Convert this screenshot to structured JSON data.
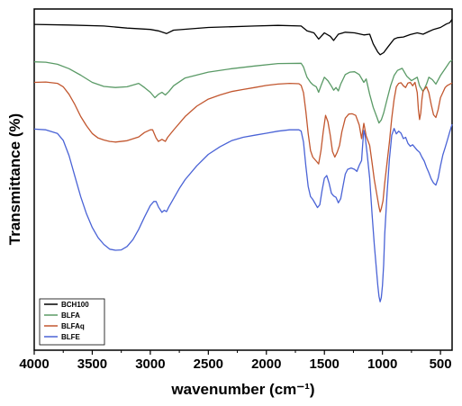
{
  "chart_data": {
    "type": "line",
    "title": "",
    "xlabel": "wavenumber (cm⁻¹)",
    "ylabel": "Transmittance (%)",
    "xlim": [
      4000,
      400
    ],
    "x_reversed": true,
    "x_ticks": [
      4000,
      3500,
      3000,
      2500,
      2000,
      1500,
      1000,
      500
    ],
    "y_ticks_shown": false,
    "ylim": [
      0,
      100
    ],
    "grid": false,
    "legend_position": "bottom-left",
    "series": [
      {
        "name": "BCH100",
        "color": "#000000",
        "points": [
          [
            4000,
            95.5
          ],
          [
            3700,
            95.3
          ],
          [
            3400,
            95.0
          ],
          [
            3200,
            94.4
          ],
          [
            3000,
            94.0
          ],
          [
            2930,
            93.6
          ],
          [
            2860,
            92.8
          ],
          [
            2800,
            93.8
          ],
          [
            2500,
            94.6
          ],
          [
            2100,
            95.0
          ],
          [
            1900,
            95.2
          ],
          [
            1700,
            95.0
          ],
          [
            1650,
            93.6
          ],
          [
            1590,
            93.0
          ],
          [
            1550,
            91.2
          ],
          [
            1500,
            93.0
          ],
          [
            1450,
            92.0
          ],
          [
            1420,
            90.8
          ],
          [
            1380,
            92.6
          ],
          [
            1320,
            93.2
          ],
          [
            1240,
            93.0
          ],
          [
            1160,
            92.4
          ],
          [
            1110,
            92.6
          ],
          [
            1080,
            89.8
          ],
          [
            1040,
            87.4
          ],
          [
            1020,
            86.6
          ],
          [
            990,
            87.2
          ],
          [
            950,
            89.0
          ],
          [
            900,
            91.2
          ],
          [
            870,
            91.6
          ],
          [
            820,
            91.8
          ],
          [
            760,
            92.5
          ],
          [
            700,
            93.0
          ],
          [
            650,
            92.6
          ],
          [
            600,
            93.4
          ],
          [
            560,
            94.0
          ],
          [
            500,
            94.6
          ],
          [
            450,
            95.6
          ],
          [
            420,
            96.0
          ],
          [
            400,
            97.0
          ]
        ]
      },
      {
        "name": "BLFA",
        "color": "#5a9a66",
        "points": [
          [
            4000,
            84.5
          ],
          [
            3900,
            84.4
          ],
          [
            3800,
            83.8
          ],
          [
            3700,
            82.5
          ],
          [
            3600,
            80.6
          ],
          [
            3500,
            78.5
          ],
          [
            3400,
            77.3
          ],
          [
            3300,
            77.0
          ],
          [
            3200,
            77.2
          ],
          [
            3100,
            78.2
          ],
          [
            3050,
            77.0
          ],
          [
            3000,
            75.6
          ],
          [
            2960,
            74.0
          ],
          [
            2930,
            75.0
          ],
          [
            2900,
            75.6
          ],
          [
            2870,
            74.8
          ],
          [
            2840,
            75.8
          ],
          [
            2800,
            77.5
          ],
          [
            2700,
            79.8
          ],
          [
            2500,
            81.5
          ],
          [
            2300,
            82.5
          ],
          [
            2100,
            83.3
          ],
          [
            1900,
            84.0
          ],
          [
            1700,
            84.1
          ],
          [
            1680,
            83.0
          ],
          [
            1650,
            80.0
          ],
          [
            1620,
            78.5
          ],
          [
            1600,
            77.8
          ],
          [
            1570,
            77.2
          ],
          [
            1550,
            75.6
          ],
          [
            1530,
            77.5
          ],
          [
            1500,
            80.0
          ],
          [
            1470,
            79.0
          ],
          [
            1440,
            77.4
          ],
          [
            1420,
            76.2
          ],
          [
            1400,
            77.0
          ],
          [
            1380,
            76.0
          ],
          [
            1360,
            78.0
          ],
          [
            1320,
            80.8
          ],
          [
            1280,
            81.5
          ],
          [
            1240,
            81.6
          ],
          [
            1200,
            80.8
          ],
          [
            1160,
            78.5
          ],
          [
            1140,
            79.5
          ],
          [
            1110,
            75.0
          ],
          [
            1080,
            71.2
          ],
          [
            1050,
            68.5
          ],
          [
            1030,
            66.6
          ],
          [
            1010,
            67.5
          ],
          [
            990,
            69.5
          ],
          [
            960,
            73.5
          ],
          [
            930,
            77.5
          ],
          [
            900,
            80.5
          ],
          [
            870,
            82.0
          ],
          [
            830,
            82.6
          ],
          [
            790,
            80.3
          ],
          [
            750,
            79.0
          ],
          [
            700,
            80.0
          ],
          [
            680,
            77.5
          ],
          [
            650,
            75.8
          ],
          [
            620,
            78.0
          ],
          [
            600,
            80.0
          ],
          [
            570,
            79.3
          ],
          [
            540,
            78.0
          ],
          [
            500,
            80.5
          ],
          [
            450,
            83.0
          ],
          [
            420,
            84.5
          ],
          [
            400,
            85.0
          ]
        ]
      },
      {
        "name": "BLFAq",
        "color": "#c2572f",
        "points": [
          [
            4000,
            78.5
          ],
          [
            3900,
            78.6
          ],
          [
            3800,
            78.2
          ],
          [
            3750,
            77.2
          ],
          [
            3700,
            75.0
          ],
          [
            3650,
            72.0
          ],
          [
            3600,
            68.5
          ],
          [
            3550,
            65.8
          ],
          [
            3500,
            63.5
          ],
          [
            3450,
            62.2
          ],
          [
            3400,
            61.6
          ],
          [
            3350,
            61.2
          ],
          [
            3300,
            61.0
          ],
          [
            3200,
            61.4
          ],
          [
            3100,
            62.5
          ],
          [
            3050,
            63.8
          ],
          [
            3000,
            64.6
          ],
          [
            2980,
            64.6
          ],
          [
            2950,
            62.2
          ],
          [
            2930,
            61.2
          ],
          [
            2900,
            61.8
          ],
          [
            2870,
            61.2
          ],
          [
            2850,
            62.4
          ],
          [
            2800,
            64.5
          ],
          [
            2700,
            68.5
          ],
          [
            2600,
            71.5
          ],
          [
            2500,
            73.6
          ],
          [
            2400,
            74.8
          ],
          [
            2300,
            75.8
          ],
          [
            2200,
            76.4
          ],
          [
            2100,
            77.0
          ],
          [
            2000,
            77.6
          ],
          [
            1900,
            78.0
          ],
          [
            1800,
            78.2
          ],
          [
            1720,
            78.1
          ],
          [
            1700,
            77.6
          ],
          [
            1680,
            75.5
          ],
          [
            1660,
            70.0
          ],
          [
            1640,
            63.5
          ],
          [
            1620,
            58.5
          ],
          [
            1600,
            56.6
          ],
          [
            1580,
            55.8
          ],
          [
            1560,
            55.0
          ],
          [
            1550,
            54.6
          ],
          [
            1530,
            58.5
          ],
          [
            1510,
            64.0
          ],
          [
            1490,
            68.8
          ],
          [
            1470,
            67.0
          ],
          [
            1450,
            63.0
          ],
          [
            1430,
            58.2
          ],
          [
            1410,
            56.6
          ],
          [
            1390,
            58.0
          ],
          [
            1370,
            60.0
          ],
          [
            1350,
            64.0
          ],
          [
            1320,
            68.0
          ],
          [
            1290,
            69.2
          ],
          [
            1260,
            69.3
          ],
          [
            1230,
            68.8
          ],
          [
            1200,
            66.0
          ],
          [
            1180,
            62.0
          ],
          [
            1160,
            66.5
          ],
          [
            1140,
            62.8
          ],
          [
            1110,
            60.0
          ],
          [
            1090,
            55.0
          ],
          [
            1070,
            50.0
          ],
          [
            1050,
            46.0
          ],
          [
            1030,
            42.0
          ],
          [
            1020,
            40.5
          ],
          [
            1010,
            41.5
          ],
          [
            995,
            43.8
          ],
          [
            980,
            49.0
          ],
          [
            960,
            55.0
          ],
          [
            940,
            61.0
          ],
          [
            920,
            68.0
          ],
          [
            900,
            73.5
          ],
          [
            880,
            77.2
          ],
          [
            860,
            78.2
          ],
          [
            840,
            78.4
          ],
          [
            820,
            77.5
          ],
          [
            800,
            77.0
          ],
          [
            780,
            78.3
          ],
          [
            760,
            78.5
          ],
          [
            740,
            77.5
          ],
          [
            720,
            78.5
          ],
          [
            700,
            75.5
          ],
          [
            690,
            70.5
          ],
          [
            680,
            67.6
          ],
          [
            670,
            69.5
          ],
          [
            660,
            73.5
          ],
          [
            650,
            76.0
          ],
          [
            620,
            77.2
          ],
          [
            600,
            75.5
          ],
          [
            580,
            72.0
          ],
          [
            560,
            69.0
          ],
          [
            540,
            68.2
          ],
          [
            520,
            70.5
          ],
          [
            500,
            74.0
          ],
          [
            480,
            75.5
          ],
          [
            460,
            77.0
          ],
          [
            440,
            77.6
          ],
          [
            400,
            78.3
          ]
        ]
      },
      {
        "name": "BLFE",
        "color": "#4a63d6",
        "points": [
          [
            4000,
            64.8
          ],
          [
            3900,
            64.6
          ],
          [
            3800,
            63.5
          ],
          [
            3750,
            61.5
          ],
          [
            3700,
            57.0
          ],
          [
            3650,
            51.0
          ],
          [
            3600,
            45.0
          ],
          [
            3550,
            40.0
          ],
          [
            3500,
            36.0
          ],
          [
            3450,
            33.0
          ],
          [
            3400,
            31.0
          ],
          [
            3350,
            29.6
          ],
          [
            3300,
            29.3
          ],
          [
            3250,
            29.4
          ],
          [
            3200,
            30.4
          ],
          [
            3150,
            32.4
          ],
          [
            3100,
            35.4
          ],
          [
            3050,
            39.0
          ],
          [
            3000,
            42.4
          ],
          [
            2970,
            43.6
          ],
          [
            2950,
            43.6
          ],
          [
            2930,
            42.0
          ],
          [
            2900,
            40.4
          ],
          [
            2880,
            41.0
          ],
          [
            2860,
            40.6
          ],
          [
            2840,
            42.0
          ],
          [
            2800,
            44.4
          ],
          [
            2750,
            47.4
          ],
          [
            2700,
            50.0
          ],
          [
            2600,
            54.0
          ],
          [
            2500,
            57.4
          ],
          [
            2400,
            59.6
          ],
          [
            2300,
            61.4
          ],
          [
            2200,
            62.4
          ],
          [
            2100,
            63.0
          ],
          [
            2000,
            63.6
          ],
          [
            1900,
            64.2
          ],
          [
            1800,
            64.6
          ],
          [
            1720,
            64.6
          ],
          [
            1700,
            64.2
          ],
          [
            1680,
            61.0
          ],
          [
            1660,
            54.0
          ],
          [
            1640,
            48.0
          ],
          [
            1620,
            45.0
          ],
          [
            1600,
            44.2
          ],
          [
            1580,
            43.0
          ],
          [
            1560,
            41.8
          ],
          [
            1540,
            42.6
          ],
          [
            1520,
            46.8
          ],
          [
            1500,
            50.4
          ],
          [
            1480,
            51.2
          ],
          [
            1460,
            49.0
          ],
          [
            1440,
            46.0
          ],
          [
            1420,
            45.2
          ],
          [
            1400,
            44.8
          ],
          [
            1380,
            43.2
          ],
          [
            1360,
            44.4
          ],
          [
            1340,
            48.0
          ],
          [
            1320,
            51.6
          ],
          [
            1300,
            53.0
          ],
          [
            1270,
            53.4
          ],
          [
            1240,
            53.0
          ],
          [
            1220,
            52.4
          ],
          [
            1200,
            54.2
          ],
          [
            1180,
            55.6
          ],
          [
            1170,
            60.6
          ],
          [
            1160,
            64.4
          ],
          [
            1150,
            63.0
          ],
          [
            1130,
            57.0
          ],
          [
            1110,
            50.4
          ],
          [
            1090,
            40.0
          ],
          [
            1070,
            31.0
          ],
          [
            1050,
            23.0
          ],
          [
            1040,
            19.0
          ],
          [
            1030,
            15.8
          ],
          [
            1020,
            14.2
          ],
          [
            1010,
            15.4
          ],
          [
            1000,
            19.0
          ],
          [
            990,
            25.0
          ],
          [
            980,
            34.0
          ],
          [
            960,
            46.0
          ],
          [
            940,
            56.0
          ],
          [
            920,
            63.0
          ],
          [
            900,
            65.0
          ],
          [
            880,
            63.4
          ],
          [
            860,
            64.2
          ],
          [
            840,
            63.6
          ],
          [
            820,
            62.0
          ],
          [
            800,
            62.4
          ],
          [
            780,
            60.6
          ],
          [
            760,
            59.8
          ],
          [
            740,
            60.2
          ],
          [
            720,
            59.4
          ],
          [
            700,
            58.6
          ],
          [
            680,
            58.0
          ],
          [
            660,
            56.6
          ],
          [
            640,
            55.4
          ],
          [
            620,
            53.6
          ],
          [
            600,
            52.0
          ],
          [
            580,
            50.2
          ],
          [
            560,
            49.0
          ],
          [
            540,
            48.4
          ],
          [
            520,
            50.4
          ],
          [
            500,
            54.0
          ],
          [
            480,
            57.2
          ],
          [
            460,
            59.4
          ],
          [
            440,
            61.6
          ],
          [
            420,
            64.0
          ],
          [
            400,
            66.2
          ]
        ]
      }
    ]
  }
}
